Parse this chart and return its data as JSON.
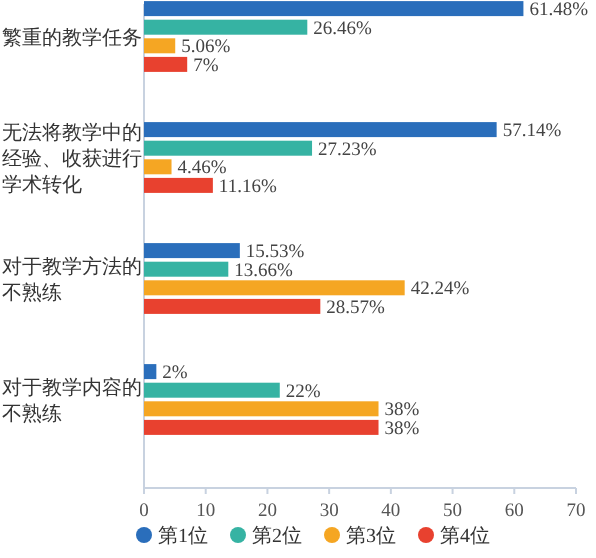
{
  "chart_data": {
    "type": "bar",
    "orientation": "horizontal",
    "categories": [
      "繁重的教学任务",
      "无法将教学中的经验、收获进行学术转化",
      "对于教学方法的不熟练",
      "对于教学内容的不熟练"
    ],
    "series": [
      {
        "name": "第1位",
        "color": "#2a6ebb",
        "values": [
          61.48,
          57.14,
          15.53,
          2
        ],
        "value_labels": [
          "61.48%",
          "57.14%",
          "15.53%",
          "2%"
        ]
      },
      {
        "name": "第2位",
        "color": "#36b3a3",
        "values": [
          26.46,
          27.23,
          13.66,
          22
        ],
        "value_labels": [
          "26.46%",
          "27.23%",
          "13.66%",
          "22%"
        ]
      },
      {
        "name": "第3位",
        "color": "#f5a623",
        "values": [
          5.06,
          4.46,
          42.24,
          38
        ],
        "value_labels": [
          "5.06%",
          "4.46%",
          "42.24%",
          "38%"
        ]
      },
      {
        "name": "第4位",
        "color": "#e8412f",
        "values": [
          7,
          11.16,
          28.57,
          38
        ],
        "value_labels": [
          "7%",
          "11.16%",
          "28.57%",
          "38%"
        ]
      }
    ],
    "xlim": [
      0,
      70
    ],
    "xticks": [
      0,
      10,
      20,
      30,
      40,
      50,
      60,
      70
    ],
    "legend": "bottom"
  }
}
